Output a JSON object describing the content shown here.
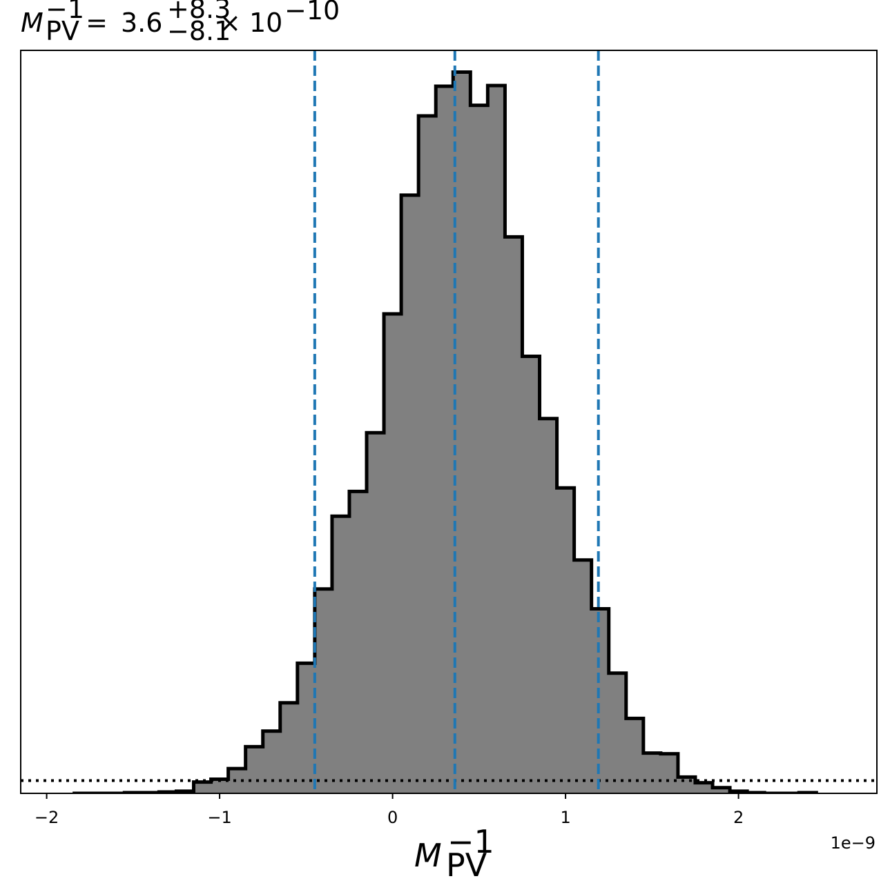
{
  "chart_data": {
    "type": "histogram",
    "title": {
      "base": "M",
      "base_sub": "PV",
      "base_sup": "−1",
      "equals": " = ",
      "value": "3.6",
      "err_plus": "+8.3",
      "err_minus": "−8.1",
      "multiplier": " × 10",
      "exponent": "−10"
    },
    "xlabel": {
      "base": "M",
      "sub": "PV",
      "sup": "−1"
    },
    "x_offset_label": "1e−9",
    "xlim": [
      -2.15e-09,
      2.8e-09
    ],
    "ylim": [
      0,
      1.05
    ],
    "xticks": [
      {
        "value": -2e-09,
        "label": "−2"
      },
      {
        "value": -1e-09,
        "label": "−1"
      },
      {
        "value": 0,
        "label": "0"
      },
      {
        "value": 1e-09,
        "label": "1"
      },
      {
        "value": 2e-09,
        "label": "2"
      }
    ],
    "y_ticks_visible": false,
    "grid": false,
    "bins": {
      "start": -1.85e-09,
      "width": 1e-10,
      "values": [
        0.0,
        0.0,
        0.0,
        0.001,
        0.001,
        0.002,
        0.003,
        0.016,
        0.02,
        0.035,
        0.066,
        0.088,
        0.128,
        0.184,
        0.289,
        0.392,
        0.427,
        0.51,
        0.678,
        0.846,
        0.958,
        1.0,
        1.02,
        0.973,
        1.001,
        0.787,
        0.618,
        0.53,
        0.432,
        0.33,
        0.261,
        0.17,
        0.106,
        0.057,
        0.056,
        0.023,
        0.015,
        0.008,
        0.003,
        0.001,
        0.0,
        0.0,
        0.001
      ]
    },
    "fill_color": "#808080",
    "edge_color": "#000000",
    "vertical_lines": [
      {
        "x": -4.5e-10,
        "role": "lower",
        "style": "dashed"
      },
      {
        "x": 3.6e-10,
        "role": "median",
        "style": "dashed"
      },
      {
        "x": 1.19e-09,
        "role": "upper",
        "style": "dashed"
      }
    ],
    "vertical_line_color": "#1f77b4",
    "horizontal_line": {
      "y": 0.018,
      "style": "dotted",
      "color": "#000000"
    }
  }
}
